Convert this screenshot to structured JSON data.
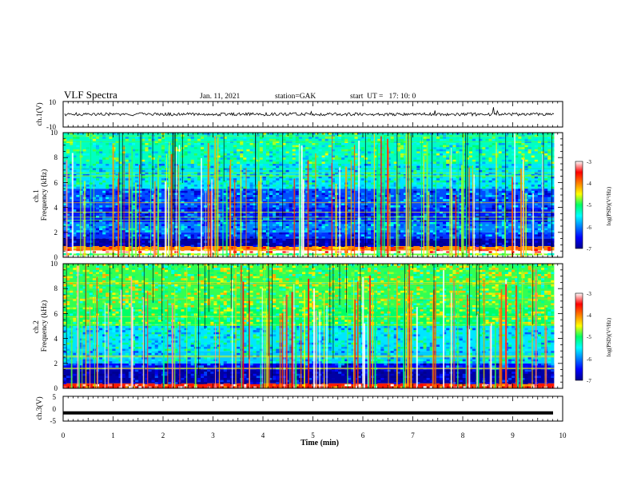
{
  "header": {
    "title": "VLF Spectra",
    "date": "Jan. 11, 2021",
    "station": "station=GAK",
    "start": "start  UT =   17: 10: 0"
  },
  "chart_data": [
    {
      "type": "line",
      "panel": "ch1-waveform",
      "ylabel": "ch.1(V)",
      "ylim": [
        -10,
        10
      ],
      "yticks": [
        "10",
        "-10"
      ],
      "xlim": [
        0,
        10
      ],
      "series": [
        {
          "baseline": 0,
          "amplitude_approx": 2
        }
      ]
    },
    {
      "type": "heatmap",
      "panel": "ch1-spectrogram",
      "ylabel": "ch.1\nFrequency (kHz)",
      "ylim": [
        0,
        10
      ],
      "yticks": [
        "0",
        "2",
        "4",
        "6",
        "8",
        "10"
      ],
      "xlim": [
        0,
        10
      ],
      "colorbar": {
        "label": "log(PSD)(V²/Hz)",
        "range": [
          -7,
          -3
        ],
        "ticks": [
          "-3",
          "-4",
          "-5",
          "-6",
          "-7"
        ]
      },
      "bands_khz": [
        {
          "lo": 0.0,
          "hi": 0.15,
          "level": -2.5
        },
        {
          "lo": 0.15,
          "hi": 0.3,
          "level": -4.8
        },
        {
          "lo": 0.3,
          "hi": 0.55,
          "level": -3.0
        },
        {
          "lo": 0.55,
          "hi": 0.9,
          "level": -4.0
        },
        {
          "lo": 0.9,
          "hi": 1.5,
          "level": -6.9
        },
        {
          "lo": 1.5,
          "hi": 2.0,
          "level": -6.3
        },
        {
          "lo": 2.0,
          "hi": 2.8,
          "level": -6.0
        },
        {
          "lo": 2.8,
          "hi": 4.0,
          "level": -6.4
        },
        {
          "lo": 4.0,
          "hi": 5.5,
          "level": -6.2
        },
        {
          "lo": 5.5,
          "hi": 7.5,
          "level": -5.6
        },
        {
          "lo": 7.5,
          "hi": 10.0,
          "level": -5.3
        }
      ]
    },
    {
      "type": "heatmap",
      "panel": "ch2-spectrogram",
      "ylabel": "ch.2\nFrequency (kHz)",
      "ylim": [
        0,
        10
      ],
      "yticks": [
        "0",
        "2",
        "4",
        "6",
        "8",
        "10"
      ],
      "xlim": [
        0,
        10
      ],
      "colorbar": {
        "label": "log(PSD)(V²/Hz)",
        "range": [
          -7,
          -3
        ],
        "ticks": [
          "-3",
          "-4",
          "-5",
          "-6",
          "-7"
        ]
      },
      "bands_khz": [
        {
          "lo": 0.0,
          "hi": 0.4,
          "level": -3.6
        },
        {
          "lo": 0.4,
          "hi": 1.5,
          "level": -6.9
        },
        {
          "lo": 1.5,
          "hi": 2.0,
          "level": -6.5
        },
        {
          "lo": 2.0,
          "hi": 3.0,
          "level": -5.7
        },
        {
          "lo": 3.0,
          "hi": 5.0,
          "level": -5.6
        },
        {
          "lo": 5.0,
          "hi": 6.5,
          "level": -5.0
        },
        {
          "lo": 6.5,
          "hi": 10.0,
          "level": -4.9
        }
      ]
    },
    {
      "type": "line",
      "panel": "ch3-waveform",
      "ylabel": "ch.3(V)",
      "ylim": [
        -5,
        5
      ],
      "yticks": [
        "5",
        "0",
        "-5"
      ],
      "xlim": [
        0,
        10
      ],
      "series": [
        {
          "value": -1.7
        }
      ]
    }
  ],
  "x_axis": {
    "label": "Time (min)",
    "ticks": [
      "0",
      "1",
      "2",
      "3",
      "4",
      "5",
      "6",
      "7",
      "8",
      "9",
      "10"
    ],
    "data_end_min": 9.83
  }
}
